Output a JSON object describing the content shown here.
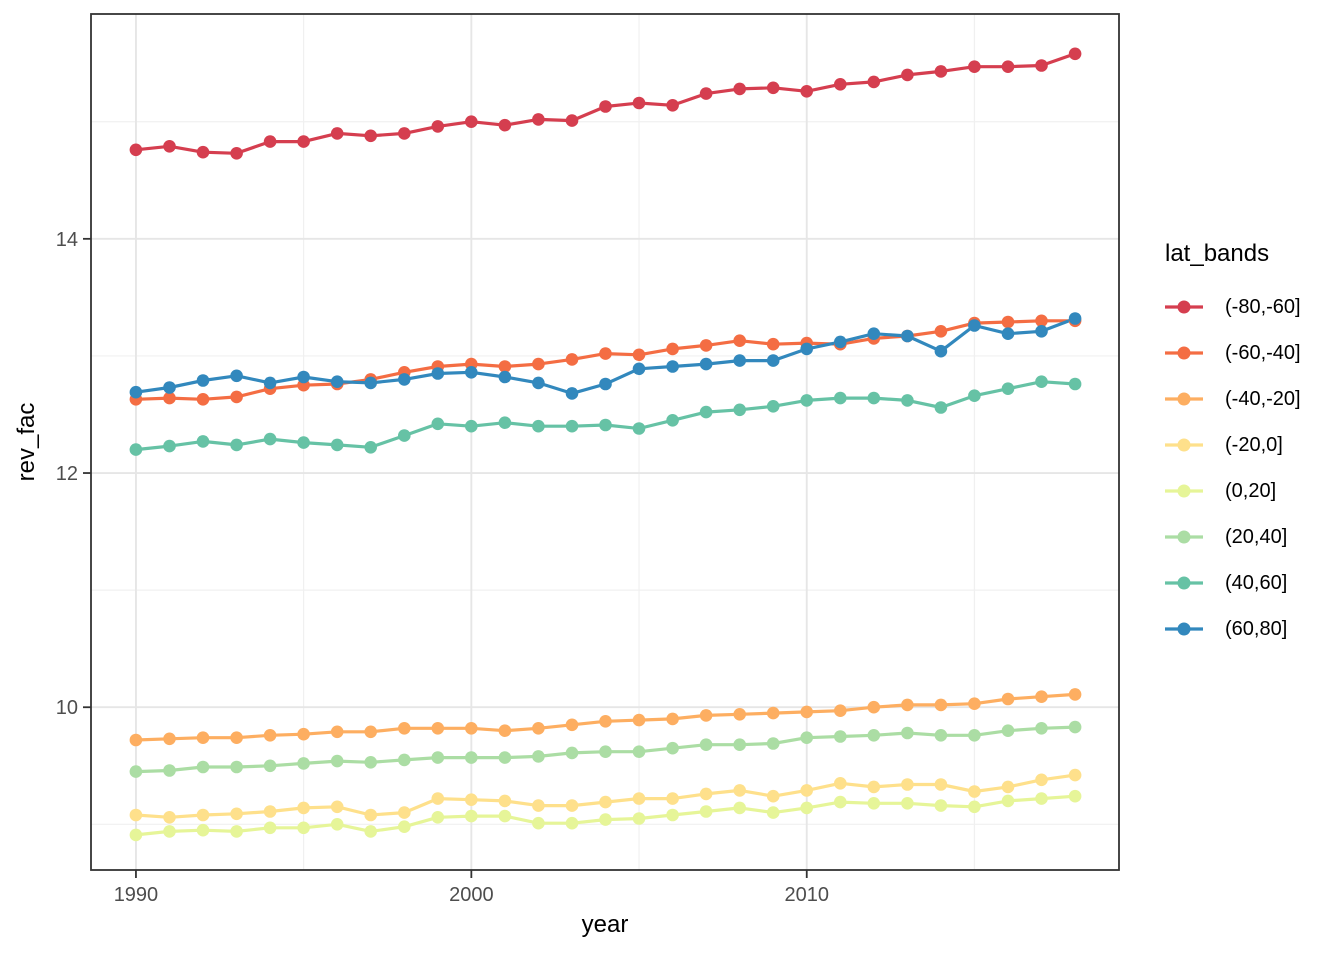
{
  "chart_data": {
    "type": "line",
    "title": "",
    "xlabel": "year",
    "ylabel": "rev_fac",
    "legend_title": "lat_bands",
    "legend_position": "right",
    "grid": true,
    "background": "#ffffff",
    "grid_major_color": "#e6e6e6",
    "grid_minor_color": "#f0f0f0",
    "panel_border_color": "#333333",
    "tick_label_color": "#4d4d4d",
    "x_ticks": [
      {
        "value": 1990,
        "label": "1990"
      },
      {
        "value": 2000,
        "label": "2000"
      },
      {
        "value": 2010,
        "label": "2010"
      }
    ],
    "y_ticks": [
      {
        "value": 10,
        "label": "10"
      },
      {
        "value": 12,
        "label": "12"
      },
      {
        "value": 14,
        "label": "14"
      }
    ],
    "x_minor": [
      1995,
      2005,
      2015
    ],
    "y_minor": [
      9,
      11,
      13,
      15
    ],
    "xlim": [
      1988.66,
      2019.31
    ],
    "ylim": [
      8.61,
      15.92
    ],
    "x": [
      1990,
      1991,
      1992,
      1993,
      1994,
      1995,
      1996,
      1997,
      1998,
      1999,
      2000,
      2001,
      2002,
      2003,
      2004,
      2005,
      2006,
      2007,
      2008,
      2009,
      2010,
      2011,
      2012,
      2013,
      2014,
      2015,
      2016,
      2017,
      2018
    ],
    "series": [
      {
        "name": "(-80,-60]",
        "color": "#D53E4F",
        "values": [
          14.76,
          14.79,
          14.74,
          14.73,
          14.83,
          14.83,
          14.9,
          14.88,
          14.9,
          14.96,
          15.0,
          14.97,
          15.02,
          15.01,
          15.13,
          15.16,
          15.14,
          15.24,
          15.28,
          15.29,
          15.26,
          15.32,
          15.34,
          15.4,
          15.43,
          15.47,
          15.47,
          15.48,
          15.58
        ]
      },
      {
        "name": "(-60,-40]",
        "color": "#F46D43",
        "values": [
          12.63,
          12.64,
          12.63,
          12.65,
          12.72,
          12.75,
          12.76,
          12.8,
          12.86,
          12.91,
          12.93,
          12.91,
          12.93,
          12.97,
          13.02,
          13.01,
          13.06,
          13.09,
          13.13,
          13.1,
          13.11,
          13.1,
          13.15,
          13.17,
          13.21,
          13.28,
          13.29,
          13.3,
          13.3
        ]
      },
      {
        "name": "(-40,-20]",
        "color": "#FDAE61",
        "values": [
          9.72,
          9.73,
          9.74,
          9.74,
          9.76,
          9.77,
          9.79,
          9.79,
          9.82,
          9.82,
          9.82,
          9.8,
          9.82,
          9.85,
          9.88,
          9.89,
          9.9,
          9.93,
          9.94,
          9.95,
          9.96,
          9.97,
          10.0,
          10.02,
          10.02,
          10.03,
          10.07,
          10.09,
          10.11
        ]
      },
      {
        "name": "(-20,0]",
        "color": "#FEE08B",
        "values": [
          9.08,
          9.06,
          9.08,
          9.09,
          9.11,
          9.14,
          9.15,
          9.08,
          9.1,
          9.22,
          9.21,
          9.2,
          9.16,
          9.16,
          9.19,
          9.22,
          9.22,
          9.26,
          9.29,
          9.24,
          9.29,
          9.35,
          9.32,
          9.34,
          9.34,
          9.28,
          9.32,
          9.38,
          9.42
        ]
      },
      {
        "name": "(0,20]",
        "color": "#E6F598",
        "values": [
          8.91,
          8.94,
          8.95,
          8.94,
          8.97,
          8.97,
          9.0,
          8.94,
          8.98,
          9.06,
          9.07,
          9.07,
          9.01,
          9.01,
          9.04,
          9.05,
          9.08,
          9.11,
          9.14,
          9.1,
          9.14,
          9.19,
          9.18,
          9.18,
          9.16,
          9.15,
          9.2,
          9.22,
          9.24
        ]
      },
      {
        "name": "(20,40]",
        "color": "#ABDDA4",
        "values": [
          9.45,
          9.46,
          9.49,
          9.49,
          9.5,
          9.52,
          9.54,
          9.53,
          9.55,
          9.57,
          9.57,
          9.57,
          9.58,
          9.61,
          9.62,
          9.62,
          9.65,
          9.68,
          9.68,
          9.69,
          9.74,
          9.75,
          9.76,
          9.78,
          9.76,
          9.76,
          9.8,
          9.82,
          9.83
        ]
      },
      {
        "name": "(40,60]",
        "color": "#66C2A5",
        "values": [
          12.2,
          12.23,
          12.27,
          12.24,
          12.29,
          12.26,
          12.24,
          12.22,
          12.32,
          12.42,
          12.4,
          12.43,
          12.4,
          12.4,
          12.41,
          12.38,
          12.45,
          12.52,
          12.54,
          12.57,
          12.62,
          12.64,
          12.64,
          12.62,
          12.56,
          12.66,
          12.72,
          12.78,
          12.76
        ]
      },
      {
        "name": "(60,80]",
        "color": "#3288BD",
        "values": [
          12.69,
          12.73,
          12.79,
          12.83,
          12.77,
          12.82,
          12.78,
          12.77,
          12.8,
          12.85,
          12.86,
          12.82,
          12.77,
          12.68,
          12.76,
          12.89,
          12.91,
          12.93,
          12.96,
          12.96,
          13.06,
          13.12,
          13.19,
          13.17,
          13.04,
          13.26,
          13.19,
          13.21,
          13.32
        ]
      }
    ]
  }
}
